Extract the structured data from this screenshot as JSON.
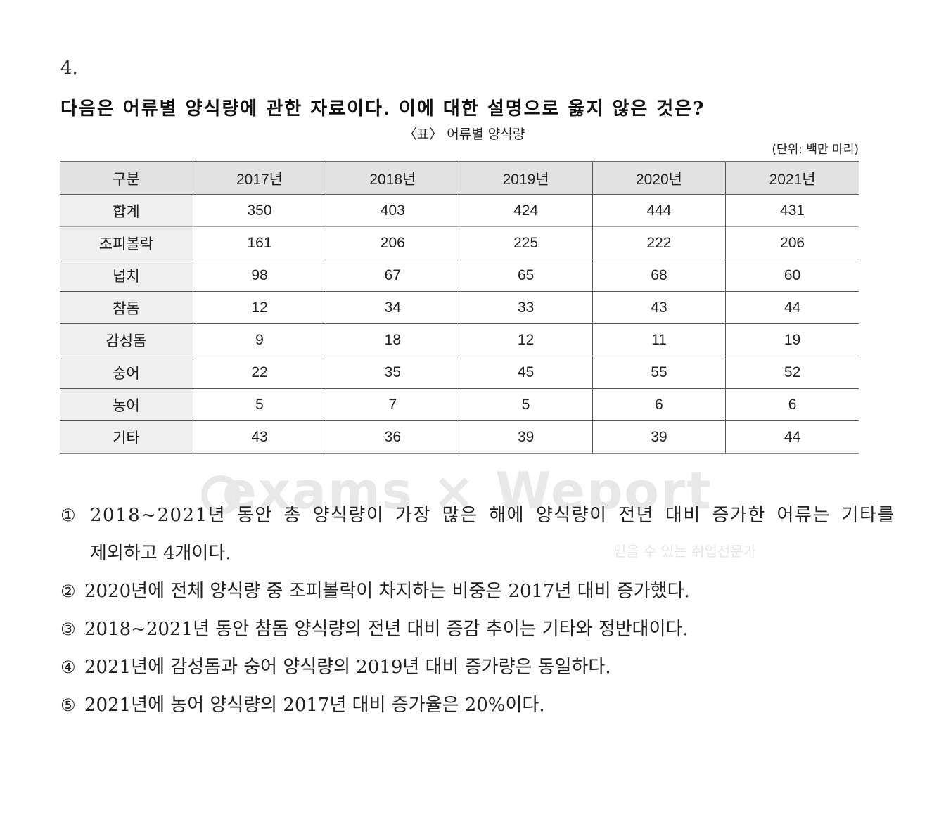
{
  "question": {
    "number": "4.",
    "stem": "다음은 어류별 양식량에 관한 자료이다. 이에 대한 설명으로 옳지 않은 것은?"
  },
  "table": {
    "caption": "〈표〉 어류별 양식량",
    "unit": "(단위: 백만 마리)",
    "headers": [
      "구분",
      "2017년",
      "2018년",
      "2019년",
      "2020년",
      "2021년"
    ],
    "rows": [
      {
        "label": "합계",
        "values": [
          "350",
          "403",
          "424",
          "444",
          "431"
        ]
      },
      {
        "label": "조피볼락",
        "values": [
          "161",
          "206",
          "225",
          "222",
          "206"
        ]
      },
      {
        "label": "넙치",
        "values": [
          "98",
          "67",
          "65",
          "68",
          "60"
        ]
      },
      {
        "label": "참돔",
        "values": [
          "12",
          "34",
          "33",
          "43",
          "44"
        ]
      },
      {
        "label": "감성돔",
        "values": [
          "9",
          "18",
          "12",
          "11",
          "19"
        ]
      },
      {
        "label": "숭어",
        "values": [
          "22",
          "35",
          "45",
          "55",
          "52"
        ]
      },
      {
        "label": "농어",
        "values": [
          "5",
          "7",
          "5",
          "6",
          "6"
        ]
      },
      {
        "label": "기타",
        "values": [
          "43",
          "36",
          "39",
          "39",
          "44"
        ]
      }
    ]
  },
  "watermark": {
    "text": "exams × Weport",
    "subtext": "믿을 수 있는 취업전문가"
  },
  "options": [
    {
      "mark": "①",
      "line1": "2018~2021년 동안 총 양식량이 가장 많은 해에 양식량이 전년 대비 증가한 어류는 기타를",
      "line2": "제외하고 4개이다."
    },
    {
      "mark": "②",
      "text": "2020년에 전체 양식량 중 조피볼락이 차지하는 비중은 2017년 대비 증가했다."
    },
    {
      "mark": "③",
      "text": "2018~2021년 동안 참돔 양식량의 전년 대비 증감 추이는 기타와 정반대이다."
    },
    {
      "mark": "④",
      "text": "2021년에 감성돔과 숭어 양식량의 2019년 대비 증가량은 동일하다."
    },
    {
      "mark": "⑤",
      "text": "2021년에 농어 양식량의 2017년 대비 증가율은 20%이다."
    }
  ]
}
